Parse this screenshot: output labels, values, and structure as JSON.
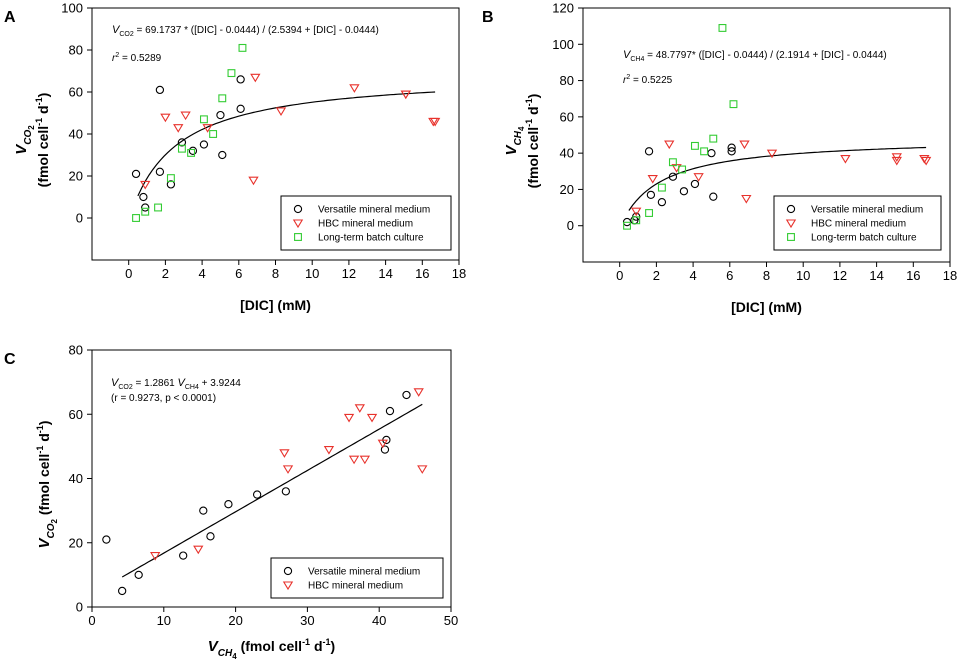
{
  "chart_data": [
    {
      "type": "scatter",
      "panel_label": "A",
      "xlabel": "[DIC] (mM)",
      "ylabel_main": "V",
      "ylabel_sub": "CO",
      "ylabel_subsub": "2",
      "ylabel_unit_1": "(fmol cell",
      "ylabel_unit_2": " d",
      "ylabel_sup": "-1",
      "xlim": [
        -2,
        18
      ],
      "ylim": [
        -20,
        100
      ],
      "xticks": [
        0,
        2,
        4,
        6,
        8,
        10,
        12,
        14,
        16,
        18
      ],
      "yticks": [
        0,
        20,
        40,
        60,
        80,
        100
      ],
      "annotation_eq": {
        "v": "V",
        "sub": "CO2",
        "rest": " = 69.1737 * ([DIC] - 0.0444) / (2.5394 + [DIC] - 0.0444)"
      },
      "annotation_r": {
        "r": "r",
        "sup": "2",
        "rest": " = 0.5289"
      },
      "fit": {
        "a": 69.1737,
        "k": 2.5394,
        "x0": 0.0444,
        "xrange": [
          0.5,
          16.7
        ]
      },
      "series": [
        {
          "name": "Versatile mineral medium",
          "marker": "circle",
          "color": "#000000",
          "x": [
            0.4,
            0.8,
            0.9,
            1.7,
            1.7,
            2.3,
            2.9,
            3.5,
            4.1,
            5.0,
            5.1,
            6.1,
            6.1
          ],
          "y": [
            21,
            10,
            5,
            61,
            22,
            16,
            36,
            32,
            35,
            49,
            30,
            52,
            66
          ]
        },
        {
          "name": "HBC mineral medium",
          "marker": "triangle",
          "color": "#e8322c",
          "x": [
            0.9,
            2.0,
            2.7,
            3.1,
            4.3,
            6.8,
            6.9,
            8.3,
            12.3,
            15.1,
            15.1,
            16.6,
            16.7
          ],
          "y": [
            16,
            48,
            43,
            49,
            43,
            18,
            67,
            51,
            62,
            59,
            59,
            46,
            46
          ]
        },
        {
          "name": "Long-term batch culture",
          "marker": "square",
          "color": "#33cc33",
          "x": [
            0.4,
            0.9,
            1.6,
            2.3,
            2.9,
            3.4,
            4.1,
            4.6,
            5.1,
            5.6,
            6.2
          ],
          "y": [
            0,
            3,
            5,
            19,
            33,
            31,
            47,
            40,
            57,
            69,
            81
          ]
        }
      ]
    },
    {
      "type": "scatter",
      "panel_label": "B",
      "xlabel": "[DIC] (mM)",
      "ylabel_main": "V",
      "ylabel_sub": "CH",
      "ylabel_subsub": "4",
      "ylabel_unit_1": "(fmol cell",
      "ylabel_unit_2": " d",
      "ylabel_sup": "-1",
      "xlim": [
        -2,
        18
      ],
      "ylim": [
        -20,
        120
      ],
      "xticks": [
        0,
        2,
        4,
        6,
        8,
        10,
        12,
        14,
        16,
        18
      ],
      "yticks": [
        0,
        20,
        40,
        60,
        80,
        100,
        120
      ],
      "annotation_eq": {
        "v": "V",
        "sub": "CH4",
        "rest": " = 48.7797* ([DIC] - 0.0444) / (2.1914 + [DIC] - 0.0444)"
      },
      "annotation_r": {
        "r": "r",
        "sup": "2",
        "rest": " = 0.5225"
      },
      "fit": {
        "a": 48.7797,
        "k": 2.1914,
        "x0": 0.0444,
        "xrange": [
          0.5,
          16.7
        ]
      },
      "series": [
        {
          "name": "Versatile mineral medium",
          "marker": "circle",
          "color": "#000000",
          "x": [
            0.4,
            0.8,
            0.9,
            1.6,
            1.7,
            2.3,
            2.9,
            3.5,
            4.1,
            5.0,
            5.1,
            6.1,
            6.1
          ],
          "y": [
            2,
            3,
            5,
            41,
            17,
            13,
            27,
            19,
            23,
            40,
            16,
            41,
            43
          ]
        },
        {
          "name": "HBC mineral medium",
          "marker": "triangle",
          "color": "#e8322c",
          "x": [
            0.9,
            1.8,
            2.7,
            3.1,
            4.3,
            6.8,
            6.9,
            8.3,
            12.3,
            15.1,
            15.1,
            16.6,
            16.7
          ],
          "y": [
            8,
            26,
            45,
            32,
            27,
            45,
            15,
            40,
            37,
            38,
            36,
            37,
            36
          ]
        },
        {
          "name": "Long-term batch culture",
          "marker": "square",
          "color": "#33cc33",
          "x": [
            0.4,
            0.9,
            1.6,
            2.3,
            2.9,
            3.4,
            4.1,
            4.6,
            5.1,
            5.6,
            6.2
          ],
          "y": [
            0,
            3,
            7,
            21,
            35,
            31,
            44,
            41,
            48,
            109,
            67
          ]
        }
      ]
    },
    {
      "type": "scatter",
      "panel_label": "C",
      "xlabel_main": "V",
      "xlabel_sub": "CH",
      "xlabel_subsub": "4",
      "xlabel_unit_1": " (fmol cell",
      "xlabel_unit_2": " d",
      "xlabel_sup": "-1",
      "xlabel_close": ")",
      "ylabel_main": "V",
      "ylabel_sub": "CO",
      "ylabel_subsub": "2",
      "ylabel_unit_1": " (fmol cell",
      "ylabel_unit_2": " d",
      "ylabel_sup": "-1",
      "xlim": [
        0,
        50
      ],
      "ylim": [
        0,
        80
      ],
      "xticks": [
        0,
        10,
        20,
        30,
        40,
        50
      ],
      "yticks": [
        0,
        20,
        40,
        60,
        80
      ],
      "annotation_eq": {
        "v": "V",
        "sub": "CO2",
        "mid": " = 1.2861 ",
        "v2": "V",
        "sub2": "CH4",
        "rest": " + 3.9244"
      },
      "annotation_r": "(r = 0.9273, p < 0.0001)",
      "fit": {
        "slope": 1.2861,
        "intercept": 3.9244,
        "xrange": [
          4.2,
          46
        ]
      },
      "series": [
        {
          "name": "Versatile mineral medium",
          "marker": "circle",
          "color": "#000000",
          "x": [
            2.0,
            4.2,
            6.5,
            12.7,
            15.5,
            16.5,
            19.0,
            23.0,
            27.0,
            40.8,
            41.0,
            41.5,
            43.8
          ],
          "y": [
            21,
            5,
            10,
            16,
            30,
            22,
            32,
            35,
            36,
            49,
            52,
            61,
            66
          ]
        },
        {
          "name": "HBC mineral medium",
          "marker": "triangle",
          "color": "#e8322c",
          "x": [
            8.8,
            14.8,
            26.8,
            27.3,
            33.0,
            35.8,
            36.5,
            37.3,
            38.0,
            39.0,
            40.5,
            45.5,
            46.0
          ],
          "y": [
            16,
            18,
            48,
            43,
            49,
            59,
            46,
            62,
            46,
            59,
            51,
            67,
            43
          ]
        }
      ]
    }
  ]
}
